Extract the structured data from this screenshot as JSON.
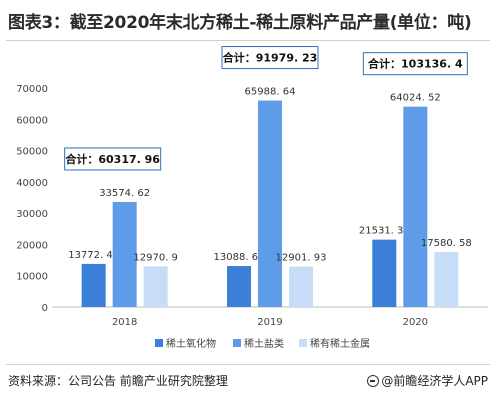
{
  "title": "图表3：截至2020年末北方稀土-稀土原料产品产量(单位：吨)",
  "source": "资料来源：公司公告 前瞻产业研究院整理",
  "brand": "@前瞻经济学人APP",
  "chart_data": {
    "type": "bar",
    "categories": [
      "2018",
      "2019",
      "2020"
    ],
    "series": [
      {
        "name": "稀土氧化物",
        "values": [
          13772.44,
          13088.66,
          21531.33
        ],
        "labels": [
          "13772. 44",
          "13088. 66",
          "21531. 33"
        ],
        "color": "#3b7fd9"
      },
      {
        "name": "稀土盐类",
        "values": [
          33574.62,
          65988.64,
          64024.52
        ],
        "labels": [
          "33574. 62",
          "65988. 64",
          "64024. 52"
        ],
        "color": "#5e9be8"
      },
      {
        "name": "稀有稀土金属",
        "values": [
          12970.9,
          12901.93,
          17580.58
        ],
        "labels": [
          "12970. 9",
          "12901. 93",
          "17580. 58"
        ],
        "color": "#c6dcf7"
      }
    ],
    "totals": [
      {
        "label": "合计：",
        "value": "60317. 96"
      },
      {
        "label": "合计：",
        "value": "91979. 23"
      },
      {
        "label": "合计：",
        "value": "103136. 4"
      }
    ],
    "yticks": [
      "0",
      "10000",
      "20000",
      "30000",
      "40000",
      "50000",
      "60000",
      "70000"
    ],
    "ylim": [
      0,
      70000
    ],
    "grid": false,
    "legend": "bottom"
  }
}
